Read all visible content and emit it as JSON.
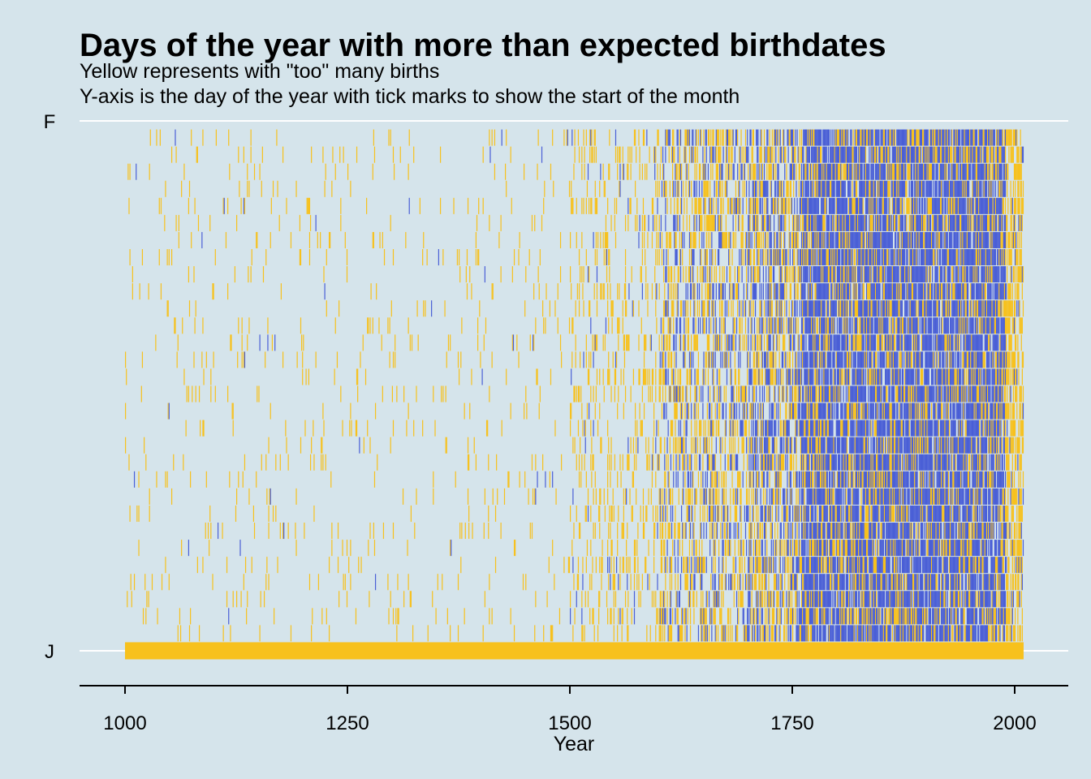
{
  "chart_data": {
    "type": "heatmap",
    "title": "Days of the year with more than expected birthdates",
    "subtitle_lines": [
      "Yellow represents with \"too\" many births",
      "Y-axis is the day of the year with tick marks to show the start of the month"
    ],
    "xlabel": "Year",
    "ylabel": "",
    "xlim": [
      950,
      2060
    ],
    "x_ticks": [
      1000,
      1250,
      1500,
      1750,
      2000
    ],
    "x_tick_labels": [
      "1000",
      "1250",
      "1500",
      "1750",
      "2000"
    ],
    "y_ticks": [
      {
        "day": 1,
        "label": "J"
      },
      {
        "day": 32,
        "label": "F"
      }
    ],
    "ylim": [
      1,
      32
    ],
    "grid": "horizontal major lines at month starts",
    "legend": "none",
    "colors": {
      "too_many": "#f7c11d",
      "not_too_many": "#4a5fd6",
      "background": "#d5e4eb",
      "gridline": "#ffffff"
    },
    "series": [
      {
        "category": "too_many",
        "description_rows": [
          {
            "day": 1,
            "x_range": [
              1000,
              2010
            ]
          }
        ]
      }
    ],
    "density_profile": {
      "note": "Observations become sparse before ~1500 and dense (mostly blue with many yellow days) between ~1750 and ~1980.",
      "bands": [
        {
          "x_range": [
            1000,
            1500
          ],
          "fill_share": 0.04,
          "blue_share": 0.05
        },
        {
          "x_range": [
            1500,
            1600
          ],
          "fill_share": 0.18,
          "blue_share": 0.15
        },
        {
          "x_range": [
            1600,
            1700
          ],
          "fill_share": 0.45,
          "blue_share": 0.35
        },
        {
          "x_range": [
            1700,
            1760
          ],
          "fill_share": 0.6,
          "blue_share": 0.5
        },
        {
          "x_range": [
            1760,
            1990
          ],
          "fill_share": 0.9,
          "blue_share": 0.72
        },
        {
          "x_range": [
            1990,
            2010
          ],
          "fill_share": 0.6,
          "blue_share": 0.1
        }
      ]
    }
  }
}
